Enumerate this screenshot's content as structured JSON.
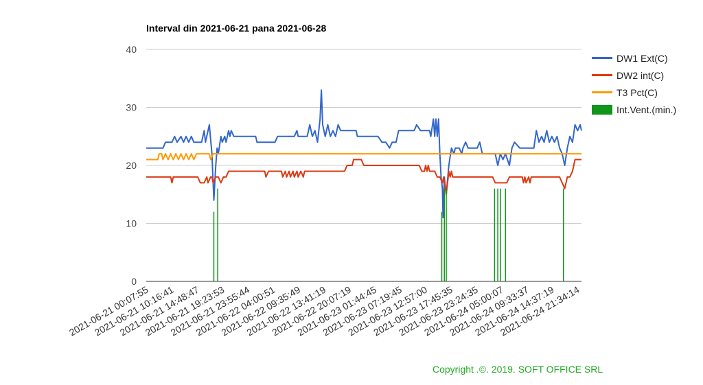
{
  "colors": {
    "ext": "#3366cc",
    "int": "#dc3912",
    "pct": "#ff9900",
    "vent": "#109618",
    "copyright": "#22aa22"
  },
  "copyright": "Copyright .©. 2019. SOFT OFFICE SRL",
  "chart_data": {
    "type": "line",
    "title": "Interval din 2021-06-21 pana 2021-06-28",
    "xlabel": "",
    "ylabel": "",
    "ylim": [
      0,
      40
    ],
    "yticks": [
      0,
      10,
      20,
      30,
      40
    ],
    "grid": true,
    "legend_position": "right",
    "xticks": [
      "2021-06-21 00:07:55",
      "2021-06-21 10:16:41",
      "2021-06-21 14:48:47",
      "2021-06-21 19:23:53",
      "2021-06-21 23:55:44",
      "2021-06-22 04:00:51",
      "2021-06-22 09:35:49",
      "2021-06-22 13:41:19",
      "2021-06-22 20:07:19",
      "2021-06-23 01:44:45",
      "2021-06-23 07:19:45",
      "2021-06-23 12:57:00",
      "2021-06-23 17:45:35",
      "2021-06-23 23:24:35",
      "2021-06-24 05:00:07",
      "2021-06-24 09:33:37",
      "2021-06-24 14:37:19",
      "2021-06-24 21:34:14"
    ],
    "series": [
      {
        "name": "DW1 Ext(C)",
        "color_key": "ext",
        "points": [
          [
            0,
            23
          ],
          [
            1.3,
            23
          ],
          [
            1.5,
            24
          ],
          [
            2.0,
            24
          ],
          [
            2.2,
            25
          ],
          [
            2.4,
            24
          ],
          [
            2.7,
            25
          ],
          [
            2.9,
            24
          ],
          [
            3.1,
            25
          ],
          [
            3.3,
            24
          ],
          [
            3.5,
            25
          ],
          [
            3.7,
            24
          ],
          [
            4.3,
            24
          ],
          [
            4.5,
            26
          ],
          [
            4.6,
            24
          ],
          [
            4.9,
            27
          ],
          [
            5.1,
            22
          ],
          [
            5.25,
            14
          ],
          [
            5.4,
            20
          ],
          [
            5.5,
            23
          ],
          [
            5.6,
            22
          ],
          [
            5.8,
            25
          ],
          [
            5.9,
            24
          ],
          [
            6.1,
            25
          ],
          [
            6.2,
            24
          ],
          [
            6.4,
            26
          ],
          [
            6.5,
            25
          ],
          [
            6.6,
            26
          ],
          [
            6.8,
            25
          ],
          [
            8.5,
            25
          ],
          [
            8.6,
            24
          ],
          [
            10.0,
            24
          ],
          [
            10.2,
            25
          ],
          [
            11.5,
            25
          ],
          [
            11.7,
            26
          ],
          [
            11.8,
            25
          ],
          [
            12.5,
            25
          ],
          [
            12.7,
            27
          ],
          [
            12.9,
            25
          ],
          [
            13.1,
            26
          ],
          [
            13.3,
            24
          ],
          [
            13.5,
            28
          ],
          [
            13.6,
            33
          ],
          [
            13.7,
            27
          ],
          [
            13.9,
            25
          ],
          [
            14.1,
            27
          ],
          [
            14.3,
            25
          ],
          [
            14.5,
            26
          ],
          [
            14.7,
            25
          ],
          [
            14.9,
            27
          ],
          [
            15.1,
            26
          ],
          [
            16.3,
            26
          ],
          [
            16.4,
            25
          ],
          [
            18.0,
            25
          ],
          [
            18.3,
            24
          ],
          [
            18.6,
            24
          ],
          [
            18.9,
            23
          ],
          [
            19.1,
            24
          ],
          [
            19.4,
            24
          ],
          [
            19.6,
            26
          ],
          [
            20.8,
            26
          ],
          [
            21.0,
            27
          ],
          [
            21.3,
            26
          ],
          [
            22.0,
            26
          ],
          [
            22.1,
            25
          ],
          [
            22.3,
            28
          ],
          [
            22.4,
            25
          ],
          [
            22.5,
            28
          ],
          [
            22.6,
            25
          ],
          [
            22.7,
            28
          ],
          [
            22.8,
            22
          ],
          [
            22.9,
            18
          ],
          [
            23.0,
            16
          ],
          [
            23.05,
            11
          ],
          [
            23.15,
            18
          ],
          [
            23.3,
            15
          ],
          [
            23.5,
            20
          ],
          [
            23.7,
            23
          ],
          [
            23.9,
            22
          ],
          [
            24.0,
            23
          ],
          [
            24.3,
            23
          ],
          [
            24.5,
            22
          ],
          [
            24.6,
            23
          ],
          [
            24.8,
            24
          ],
          [
            25.0,
            23
          ],
          [
            25.3,
            23
          ],
          [
            25.7,
            23
          ],
          [
            25.9,
            24
          ],
          [
            26.1,
            22
          ],
          [
            27.1,
            22
          ],
          [
            27.3,
            20
          ],
          [
            27.5,
            22
          ],
          [
            27.7,
            21
          ],
          [
            27.9,
            22
          ],
          [
            28.2,
            20
          ],
          [
            28.4,
            23
          ],
          [
            28.6,
            24
          ],
          [
            29.0,
            23
          ],
          [
            30.1,
            23
          ],
          [
            30.3,
            26
          ],
          [
            30.5,
            24
          ],
          [
            30.7,
            25
          ],
          [
            30.9,
            24
          ],
          [
            31.1,
            26
          ],
          [
            31.3,
            24
          ],
          [
            31.5,
            25
          ],
          [
            31.7,
            24
          ],
          [
            31.9,
            25
          ],
          [
            32.1,
            23
          ],
          [
            32.3,
            22
          ],
          [
            32.5,
            20
          ],
          [
            32.7,
            23
          ],
          [
            32.9,
            25
          ],
          [
            33.1,
            24
          ],
          [
            33.3,
            27
          ],
          [
            33.5,
            26
          ],
          [
            33.7,
            27
          ],
          [
            33.8,
            26
          ]
        ]
      },
      {
        "name": "DW2 int(C)",
        "color_key": "int",
        "points": [
          [
            0,
            18
          ],
          [
            1.9,
            18
          ],
          [
            2.0,
            17
          ],
          [
            2.1,
            18
          ],
          [
            4.0,
            18
          ],
          [
            4.2,
            17
          ],
          [
            4.5,
            17
          ],
          [
            4.7,
            18
          ],
          [
            4.8,
            17
          ],
          [
            5.0,
            18
          ],
          [
            5.1,
            18
          ],
          [
            5.2,
            17
          ],
          [
            5.4,
            18
          ],
          [
            5.6,
            18
          ],
          [
            5.8,
            17
          ],
          [
            6.0,
            18
          ],
          [
            6.2,
            18
          ],
          [
            6.4,
            19
          ],
          [
            9.2,
            19
          ],
          [
            9.3,
            18
          ],
          [
            9.5,
            19
          ],
          [
            10.5,
            19
          ],
          [
            10.6,
            18
          ],
          [
            10.8,
            19
          ],
          [
            10.9,
            18
          ],
          [
            11.1,
            19
          ],
          [
            11.2,
            18
          ],
          [
            11.4,
            19
          ],
          [
            11.5,
            18
          ],
          [
            11.7,
            19
          ],
          [
            11.8,
            18
          ],
          [
            12.0,
            19
          ],
          [
            12.2,
            18
          ],
          [
            12.3,
            19
          ],
          [
            15.4,
            19
          ],
          [
            15.6,
            20
          ],
          [
            16.0,
            20
          ],
          [
            16.1,
            21
          ],
          [
            16.7,
            21
          ],
          [
            16.9,
            20
          ],
          [
            21.2,
            20
          ],
          [
            21.4,
            19
          ],
          [
            21.6,
            19
          ],
          [
            21.7,
            20
          ],
          [
            21.8,
            19
          ],
          [
            21.9,
            20
          ],
          [
            22.0,
            19
          ],
          [
            22.4,
            19
          ],
          [
            22.6,
            18
          ],
          [
            22.8,
            18
          ],
          [
            23.0,
            17
          ],
          [
            23.1,
            18
          ],
          [
            23.3,
            15
          ],
          [
            23.5,
            19
          ],
          [
            23.6,
            18
          ],
          [
            23.7,
            19
          ],
          [
            23.8,
            18
          ],
          [
            26.9,
            18
          ],
          [
            27.1,
            17
          ],
          [
            28.0,
            17
          ],
          [
            28.2,
            18
          ],
          [
            29.2,
            18
          ],
          [
            29.3,
            17
          ],
          [
            29.4,
            18
          ],
          [
            29.5,
            17
          ],
          [
            29.7,
            18
          ],
          [
            29.8,
            17
          ],
          [
            29.9,
            18
          ],
          [
            32.1,
            18
          ],
          [
            32.3,
            17
          ],
          [
            32.5,
            16
          ],
          [
            32.7,
            18
          ],
          [
            32.9,
            18
          ],
          [
            33.1,
            19
          ],
          [
            33.3,
            21
          ],
          [
            33.8,
            21
          ]
        ]
      },
      {
        "name": "T3 Pct(C)",
        "color_key": "pct",
        "points": [
          [
            0,
            21
          ],
          [
            0.9,
            21
          ],
          [
            1.0,
            22
          ],
          [
            1.2,
            22
          ],
          [
            1.3,
            21
          ],
          [
            1.5,
            22
          ],
          [
            1.7,
            21
          ],
          [
            1.9,
            22
          ],
          [
            2.1,
            21
          ],
          [
            2.3,
            22
          ],
          [
            2.5,
            21
          ],
          [
            2.7,
            22
          ],
          [
            2.9,
            21
          ],
          [
            3.1,
            22
          ],
          [
            3.3,
            21
          ],
          [
            3.5,
            22
          ],
          [
            3.7,
            21
          ],
          [
            3.9,
            22
          ],
          [
            4.9,
            22
          ],
          [
            5.0,
            21
          ],
          [
            5.2,
            22
          ],
          [
            33.8,
            22
          ]
        ]
      },
      {
        "name": "Int.Vent.(min.)",
        "color_key": "vent",
        "type": "spikes",
        "points": [
          [
            5.25,
            12
          ],
          [
            5.55,
            16
          ],
          [
            22.95,
            12
          ],
          [
            23.15,
            16
          ],
          [
            23.3,
            16
          ],
          [
            27.05,
            16
          ],
          [
            27.3,
            16
          ],
          [
            27.5,
            16
          ],
          [
            27.9,
            16
          ],
          [
            32.4,
            16
          ]
        ]
      }
    ]
  }
}
